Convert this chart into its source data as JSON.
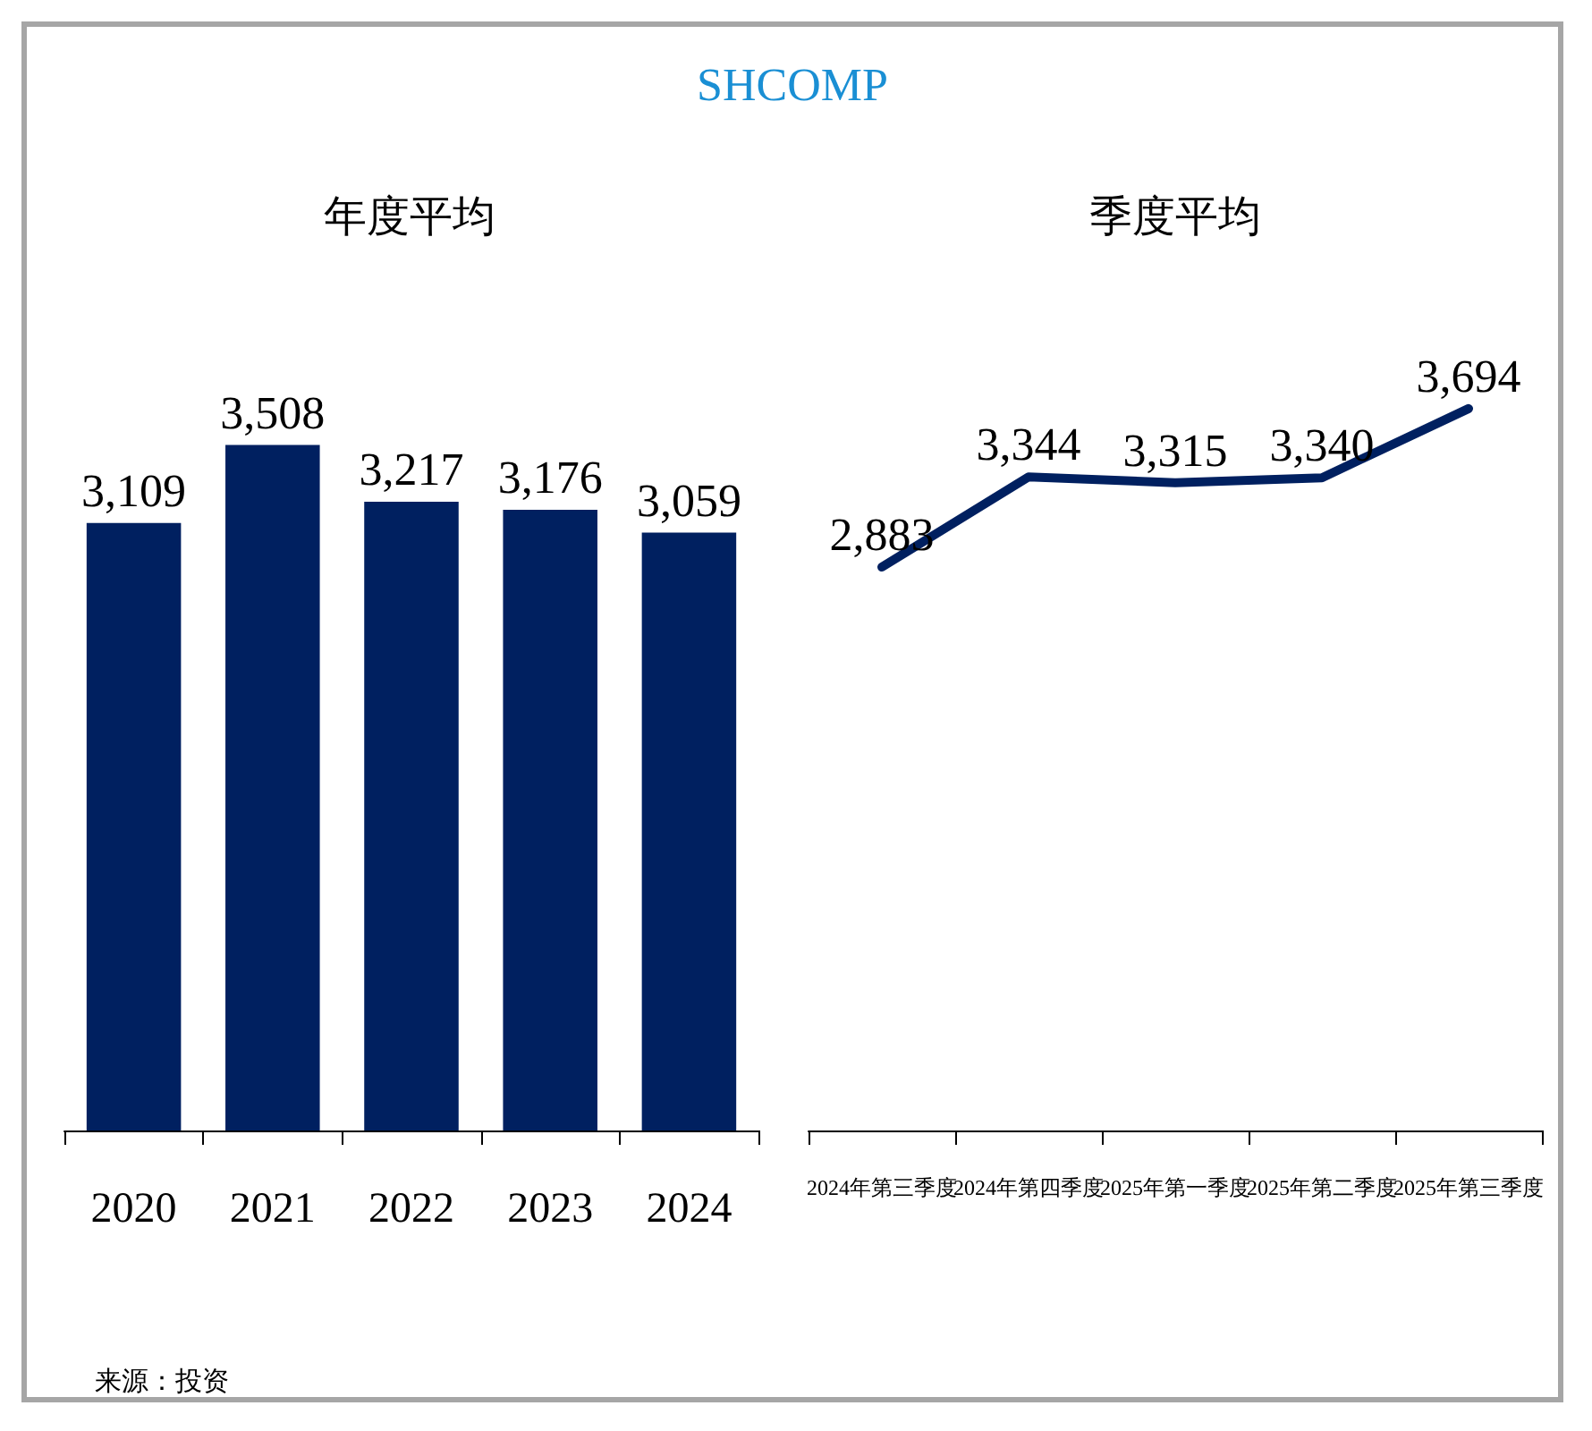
{
  "chart_data": [
    {
      "type": "bar",
      "title": "SHCOMP",
      "subtitle": "年度平均",
      "categories": [
        "2020",
        "2021",
        "2022",
        "2023",
        "2024"
      ],
      "values": [
        3109,
        3508,
        3217,
        3176,
        3059
      ],
      "color": "#002060",
      "value_labels": [
        "3,109",
        "3,508",
        "3,217",
        "3,176",
        "3,059"
      ],
      "tick_labels": "x",
      "annotations": [
        "来源：投资"
      ]
    },
    {
      "type": "line",
      "title": "季度平均",
      "categories": [
        "2024年第三季度",
        "2024年第四季度",
        "2025年第一季度",
        "2025年第二季度",
        "2025年第三季度"
      ],
      "values": [
        2883,
        3344,
        3315,
        3340,
        3694
      ],
      "color": "#002060",
      "value_labels": [
        "2,883",
        "3,344",
        "3,315",
        "3,340",
        "3,694"
      ],
      "marker": "none",
      "line_style": "solid",
      "tick_labels": "x"
    }
  ]
}
